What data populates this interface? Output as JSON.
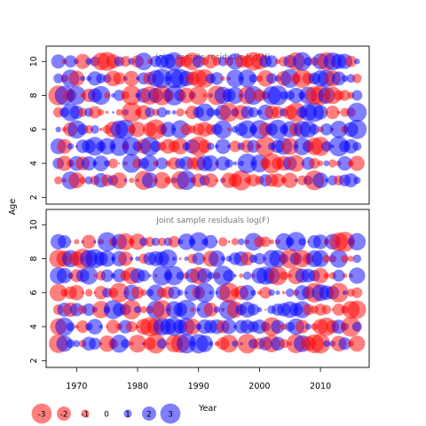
{
  "chart_data": {
    "type": "scatter",
    "subtype": "bubble",
    "panels": [
      {
        "title": "Joint sample residuals log(N)",
        "ages": [
          3,
          4,
          5,
          6,
          7,
          8,
          9,
          10
        ],
        "seed": 11
      },
      {
        "title": "Joint sample residuals log(F)",
        "ages": [
          3,
          4,
          5,
          6,
          7,
          8,
          9
        ],
        "seed": 29
      }
    ],
    "x": {
      "label": "Year",
      "ticks": [
        1970,
        1980,
        1990,
        2000,
        2010
      ],
      "range": [
        1965,
        2018
      ],
      "data_start": 1967,
      "data_end": 2016
    },
    "y": {
      "label": "Age",
      "ticks": [
        2,
        4,
        6,
        8,
        10
      ],
      "range": [
        1.6,
        10.9
      ]
    },
    "legend": {
      "placement": "bottom-left",
      "items": [
        {
          "label": "-3",
          "value": -3
        },
        {
          "label": "-2",
          "value": -2
        },
        {
          "label": "-1",
          "value": -1
        },
        {
          "label": "0",
          "value": 0
        },
        {
          "label": "1",
          "value": 1
        },
        {
          "label": "2",
          "value": 2
        },
        {
          "label": "3",
          "value": 3
        }
      ]
    },
    "colors": {
      "positive": "#0000ff",
      "negative": "#ff0000",
      "opacity": 0.5
    },
    "grid": false
  }
}
